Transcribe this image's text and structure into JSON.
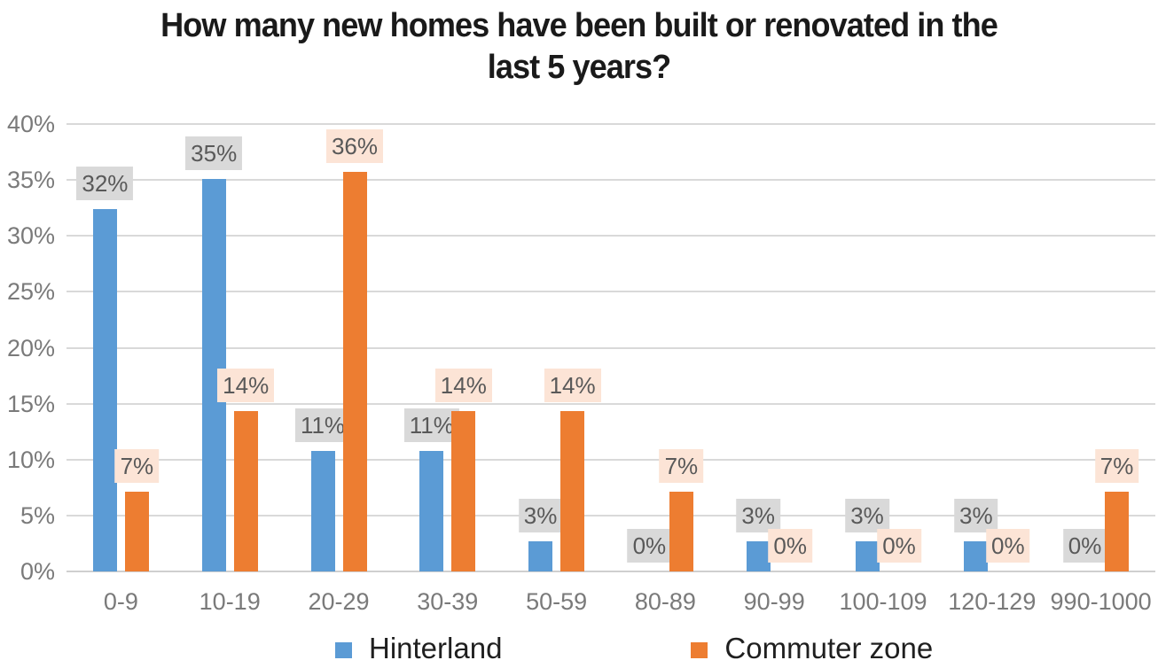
{
  "chart_data": {
    "type": "bar",
    "title": "How many new homes have been built or renovated in the last 5 years?",
    "title_lines": [
      "How many new homes have been built or renovated in the",
      "last 5 years?"
    ],
    "xlabel": "",
    "ylabel": "",
    "ylim": [
      0,
      40
    ],
    "grid": true,
    "legend_position": "bottom",
    "categories": [
      "0-9",
      "10-19",
      "20-29",
      "30-39",
      "50-59",
      "80-89",
      "90-99",
      "100-109",
      "120-129",
      "990-1000"
    ],
    "series": [
      {
        "name": "Hinterland",
        "color": "#5b9bd5",
        "label_background": "#d9d9d9",
        "labels": [
          "32%",
          "35%",
          "11%",
          "11%",
          "3%",
          "0%",
          "3%",
          "3%",
          "3%",
          "0%"
        ],
        "values": [
          32.4,
          35.1,
          10.8,
          10.8,
          2.7,
          0,
          2.7,
          2.7,
          2.7,
          0
        ]
      },
      {
        "name": "Commuter zone",
        "color": "#ed7d31",
        "label_background": "#fce4d6",
        "labels": [
          "7%",
          "14%",
          "36%",
          "14%",
          "14%",
          "7%",
          "0%",
          "0%",
          "0%",
          "7%"
        ],
        "values": [
          7.1,
          14.3,
          35.7,
          14.3,
          14.3,
          7.1,
          0,
          0,
          0,
          7.1
        ]
      }
    ],
    "y_axis": {
      "ticks": [
        "0%",
        "5%",
        "10%",
        "15%",
        "20%",
        "25%",
        "30%",
        "35%",
        "40%"
      ],
      "min": 0,
      "max": 40,
      "step": 5
    },
    "colors": {
      "gridline": "#d9d9d9",
      "axis_text": "#7a7a7a",
      "data_label_text": "#595959",
      "title_text": "#1a1a1a"
    }
  }
}
